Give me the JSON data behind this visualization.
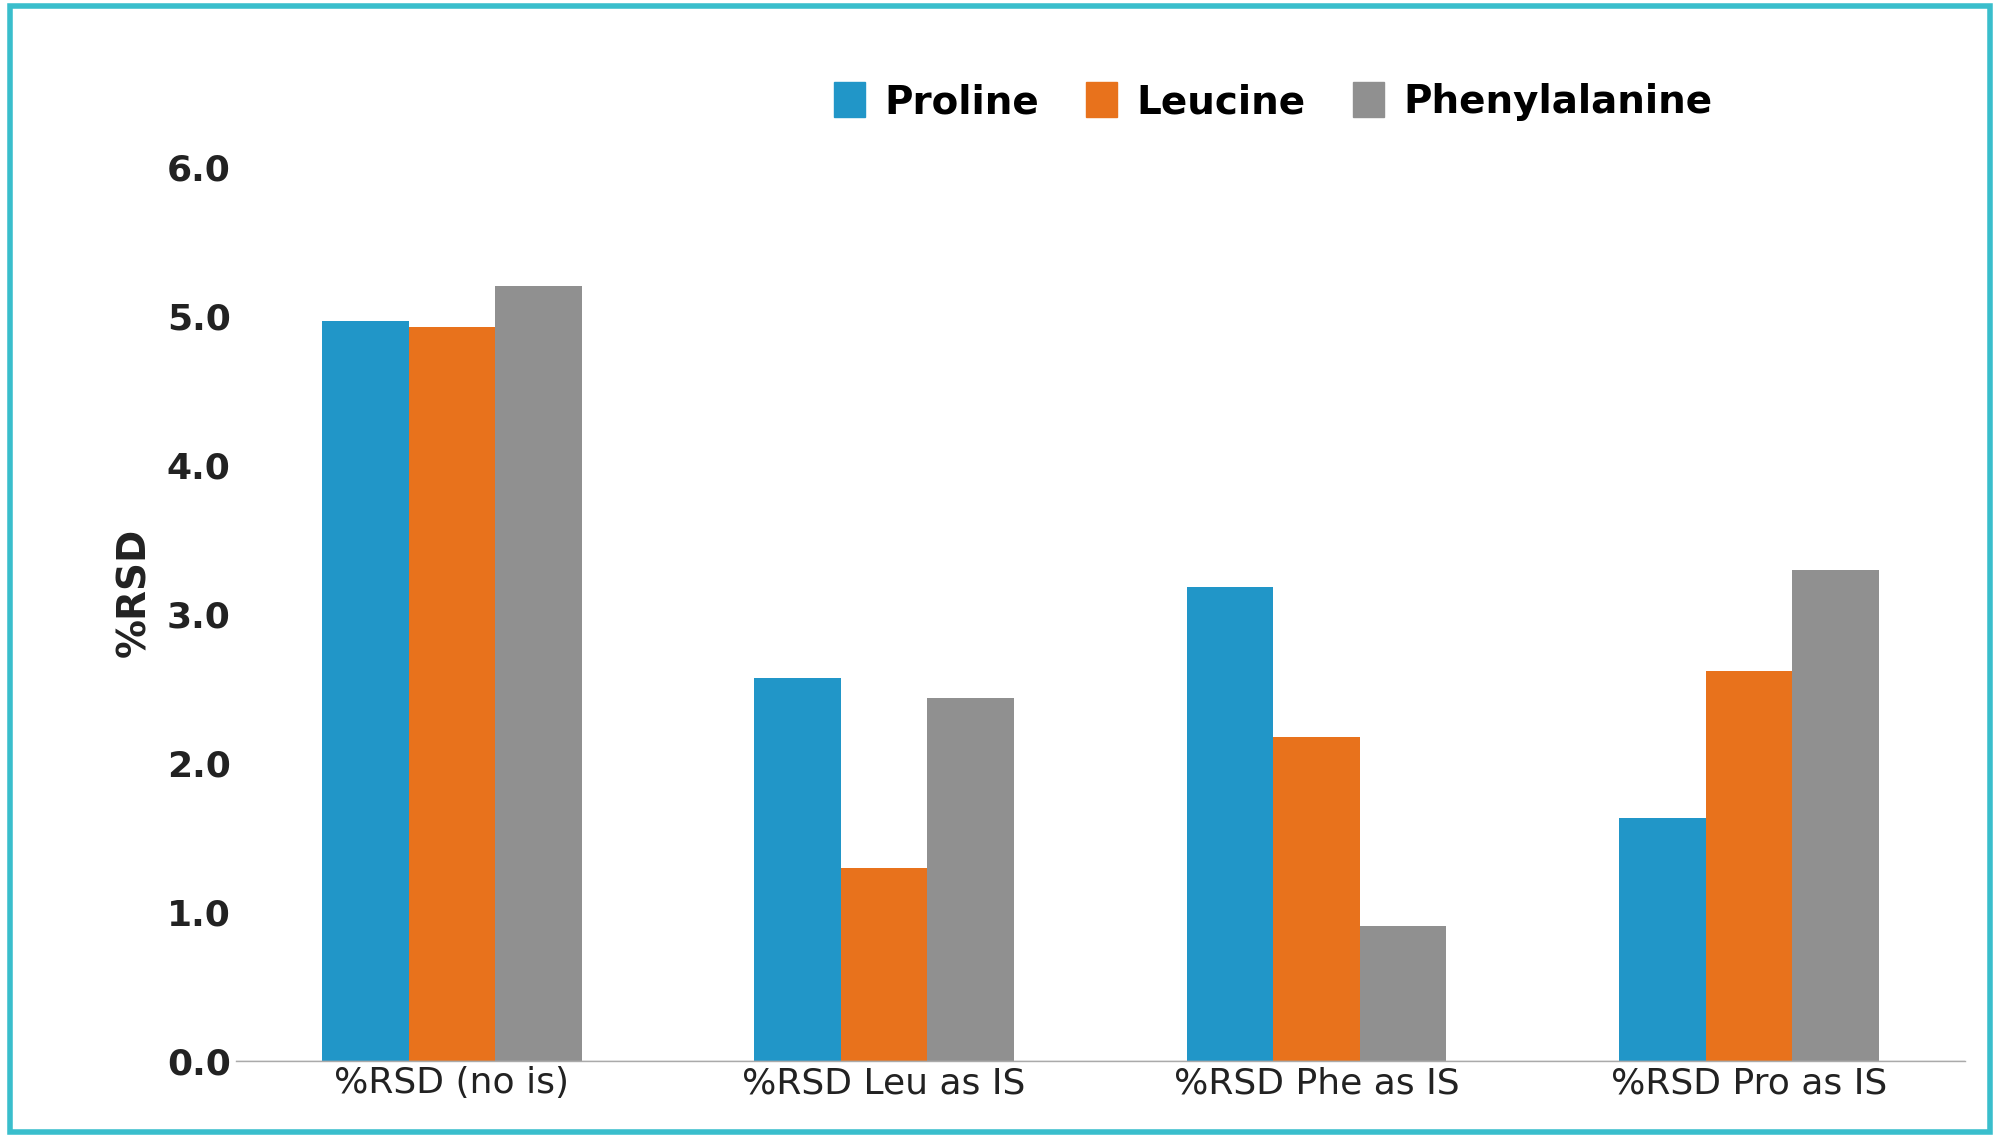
{
  "categories": [
    "%RSD (no is)",
    "%RSD Leu as IS",
    "%RSD Phe as IS",
    "%RSD Pro as IS"
  ],
  "series": {
    "Proline": [
      4.97,
      2.57,
      3.18,
      1.63
    ],
    "Leucine": [
      4.93,
      1.3,
      2.18,
      2.62
    ],
    "Phenylalanine": [
      5.2,
      2.44,
      0.91,
      3.3
    ]
  },
  "colors": {
    "Proline": "#2196C8",
    "Leucine": "#E8721C",
    "Phenylalanine": "#909090"
  },
  "ylabel": "%RSD",
  "ylim": [
    0,
    6.3
  ],
  "yticks": [
    0.0,
    1.0,
    2.0,
    3.0,
    4.0,
    5.0,
    6.0
  ],
  "legend_labels": [
    "Proline",
    "Leucine",
    "Phenylalanine"
  ],
  "bar_width": 0.2,
  "background_color": "#ffffff",
  "border_color": "#3ABECC",
  "border_linewidth": 4.0,
  "ylabel_fontsize": 28,
  "tick_fontsize": 26,
  "legend_fontsize": 28,
  "xtick_fontsize": 26
}
